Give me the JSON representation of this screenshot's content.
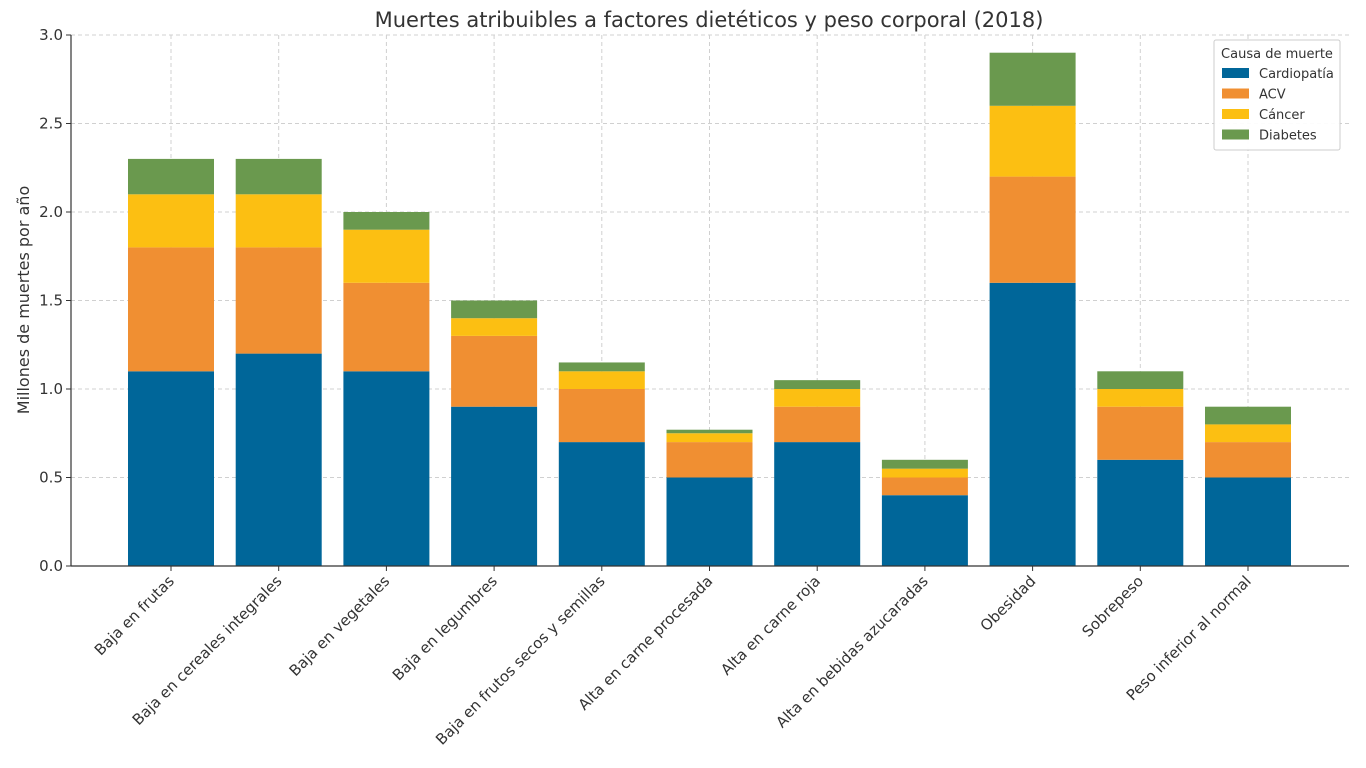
{
  "chart_data": {
    "type": "bar",
    "stacked": true,
    "title": "Muertes atribuibles a factores dietéticos y peso corporal (2018)",
    "xlabel": "",
    "ylabel": "Millones de muertes por año",
    "ylim": [
      0,
      3.0
    ],
    "yticks": [
      "0.0",
      "0.5",
      "1.0",
      "1.5",
      "2.0",
      "2.5",
      "3.0"
    ],
    "grid": true,
    "legend": {
      "title": "Causa de muerte",
      "placement": "top-right"
    },
    "categories": [
      "Baja en frutas",
      "Baja en cereales integrales",
      "Baja en vegetales",
      "Baja en legumbres",
      "Baja en frutos secos y semillas",
      "Alta en carne procesada",
      "Alta en carne roja",
      "Alta en bebidas azucaradas",
      "Obesidad",
      "Sobrepeso",
      "Peso inferior al normal"
    ],
    "series": [
      {
        "name": "Cardiopatía",
        "color": "#006699",
        "values": [
          1.1,
          1.2,
          1.1,
          0.9,
          0.7,
          0.5,
          0.7,
          0.4,
          1.6,
          0.6,
          0.5
        ]
      },
      {
        "name": "ACV",
        "color": "#f08f32",
        "values": [
          0.7,
          0.6,
          0.5,
          0.4,
          0.3,
          0.2,
          0.2,
          0.1,
          0.6,
          0.3,
          0.2
        ]
      },
      {
        "name": "Cáncer",
        "color": "#fcbf12",
        "values": [
          0.3,
          0.3,
          0.3,
          0.1,
          0.1,
          0.05,
          0.1,
          0.05,
          0.4,
          0.1,
          0.1
        ]
      },
      {
        "name": "Diabetes",
        "color": "#6a994e",
        "values": [
          0.2,
          0.2,
          0.1,
          0.1,
          0.05,
          0.02,
          0.05,
          0.05,
          0.3,
          0.1,
          0.1
        ]
      }
    ]
  }
}
